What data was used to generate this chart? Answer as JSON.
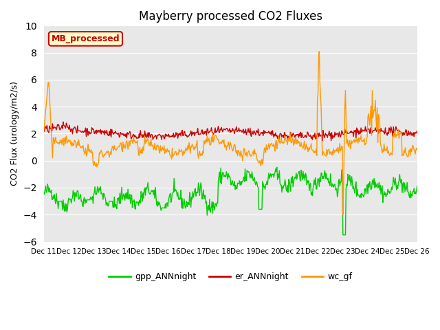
{
  "title": "Mayberry processed CO2 Fluxes",
  "ylabel": "CO2 Flux (urology/m2/s)",
  "ylim": [
    -6,
    10
  ],
  "yticks": [
    -6,
    -4,
    -2,
    0,
    2,
    4,
    6,
    8,
    10
  ],
  "background_color": "#e8e8e8",
  "legend_label": "MB_processed",
  "legend_box_color": "#ffffcc",
  "legend_box_edge": "#cc0000",
  "series": {
    "gpp_ANNnight": {
      "color": "#00cc00",
      "lw": 1.0
    },
    "er_ANNnight": {
      "color": "#cc0000",
      "lw": 1.0
    },
    "wc_gf": {
      "color": "#ff9900",
      "lw": 1.0
    }
  },
  "n_points": 600,
  "xticklabels": [
    "Dec 11",
    "Dec 12",
    "Dec 13",
    "Dec 14",
    "Dec 15",
    "Dec 16",
    "Dec 17",
    "Dec 18",
    "Dec 19",
    "Dec 20",
    "Dec 21",
    "Dec 22",
    "Dec 23",
    "Dec 24",
    "Dec 25",
    "Dec 26"
  ],
  "xtick_positions": [
    0,
    1,
    2,
    3,
    4,
    5,
    6,
    7,
    8,
    9,
    10,
    11,
    12,
    13,
    14,
    15
  ]
}
